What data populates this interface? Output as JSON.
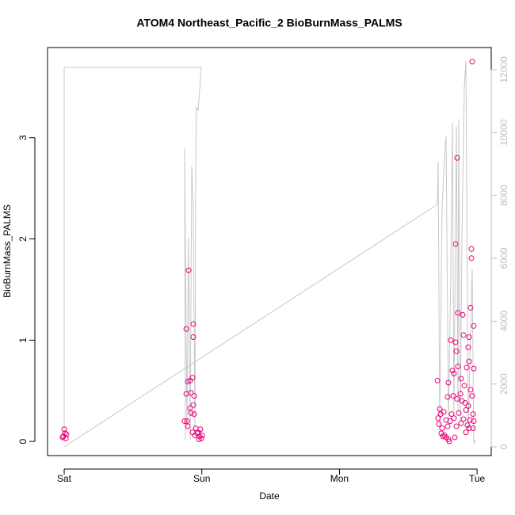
{
  "chart_data": {
    "type": "scatter",
    "title": "ATOM4 Northeast_Pacific_2 BioBurnMass_PALMS",
    "x_label": "Date",
    "y_label": "BioBurnMass_PALMS",
    "xlim": [
      -0.121,
      3.103
    ],
    "xticks": [
      {
        "value": 0,
        "label": "Sat"
      },
      {
        "value": 1,
        "label": "Sun"
      },
      {
        "value": 2,
        "label": "Mon"
      },
      {
        "value": 3,
        "label": "Tue"
      }
    ],
    "ylim": [
      -0.14,
      3.89
    ],
    "yticks": [
      0,
      1,
      2,
      3
    ],
    "y2lim": [
      -277,
      12705
    ],
    "y2ticks": [
      0,
      2000,
      4000,
      6000,
      8000,
      10000,
      12000
    ],
    "y2color": "#bebebe",
    "series": [
      {
        "type": "scatter",
        "color": "#e8007a",
        "x": [
          -0.006,
          0.006,
          0.0,
          0.017,
          -0.012,
          0.012,
          0.904,
          0.887,
          0.938,
          0.938,
          0.933,
          0.921,
          0.887,
          0.898,
          0.915,
          0.944,
          0.938,
          0.915,
          0.921,
          0.944,
          0.892,
          0.875,
          0.898,
          0.933,
          0.956,
          0.967,
          0.984,
          0.996,
          0.979,
          0.95,
          0.99,
          0.973,
          1.002,
          2.965,
          2.855,
          2.844,
          2.959,
          2.959,
          2.953,
          2.861,
          2.896,
          2.976,
          2.809,
          2.844,
          2.902,
          2.942,
          2.936,
          2.85,
          2.942,
          2.821,
          2.861,
          2.925,
          2.976,
          2.832,
          2.884,
          2.907,
          2.712,
          2.792,
          2.953,
          2.879,
          2.786,
          2.827,
          2.855,
          2.89,
          2.913,
          2.936,
          2.965,
          2.729,
          2.758,
          2.735,
          2.815,
          2.867,
          2.919,
          2.971,
          2.717,
          2.775,
          2.804,
          2.832,
          2.902,
          2.948,
          2.976,
          2.723,
          2.746,
          2.786,
          2.85,
          2.884,
          2.93,
          2.971,
          2.74,
          2.763,
          2.775,
          2.792,
          2.798,
          2.838,
          2.919,
          2.942,
          2.752
        ],
        "values": [
          0.05,
          0.08,
          0.12,
          0.07,
          0.04,
          0.03,
          1.69,
          1.11,
          1.16,
          1.03,
          0.63,
          0.48,
          0.47,
          0.59,
          0.6,
          0.45,
          0.36,
          0.33,
          0.28,
          0.27,
          0.2,
          0.2,
          0.15,
          0.09,
          0.13,
          0.08,
          0.05,
          0.03,
          0.02,
          0.06,
          0.12,
          0.09,
          0.06,
          3.75,
          2.8,
          1.95,
          1.9,
          1.81,
          1.32,
          1.27,
          1.25,
          1.14,
          1.0,
          0.98,
          1.05,
          1.03,
          0.93,
          0.89,
          0.79,
          0.7,
          0.74,
          0.73,
          0.72,
          0.67,
          0.62,
          0.55,
          0.6,
          0.58,
          0.51,
          0.47,
          0.44,
          0.45,
          0.42,
          0.4,
          0.38,
          0.35,
          0.45,
          0.32,
          0.29,
          0.27,
          0.27,
          0.28,
          0.31,
          0.27,
          0.23,
          0.21,
          0.2,
          0.23,
          0.22,
          0.21,
          0.2,
          0.17,
          0.13,
          0.15,
          0.15,
          0.18,
          0.16,
          0.13,
          0.08,
          0.06,
          0.04,
          0.02,
          0.0,
          0.04,
          0.09,
          0.13,
          0.05
        ]
      },
      {
        "type": "line",
        "axis": "y2",
        "color": "#c8c8c8",
        "x": [
          0,
          2.712,
          2.717,
          2.729,
          2.746,
          2.769,
          2.775,
          2.792,
          2.809,
          2.821,
          2.832,
          2.85,
          2.861,
          2.867,
          2.879,
          2.89,
          2.907,
          2.919,
          2.936,
          2.948,
          2.965,
          2.976,
          2.988,
          null,
          0,
          0,
          0.996,
          0.973,
          0.961,
          0.956,
          0.95,
          0.938,
          0.927,
          0.915,
          0.904,
          0.892,
          0.875,
          0.881
        ],
        "values": [
          0,
          7714,
          9075,
          605,
          7663,
          9680,
          9882,
          857,
          5394,
          10310,
          1109,
          10184,
          1109,
          10436,
          857,
          6655,
          11444,
          12276,
          479,
          2874,
          5647,
          101,
          227,
          null,
          176,
          12075,
          12075,
          10688,
          10814,
          9176,
          605,
          7663,
          8924,
          227,
          6655,
          605,
          9503,
          227
        ]
      }
    ]
  }
}
